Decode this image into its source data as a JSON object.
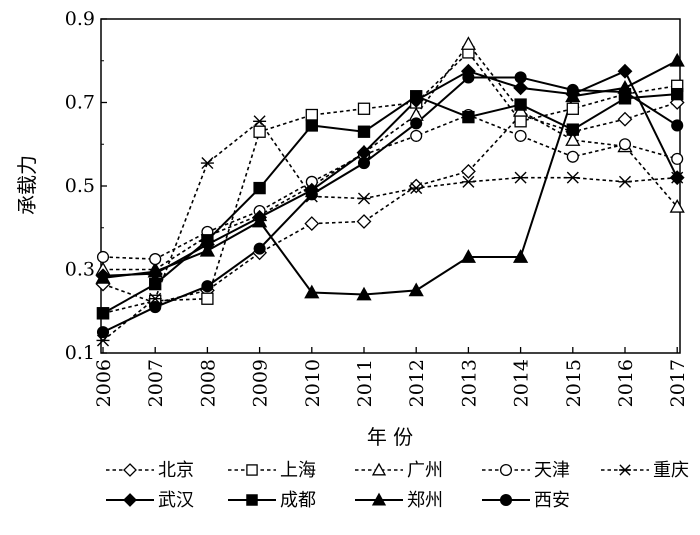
{
  "chart_data": {
    "type": "line",
    "title": "",
    "xlabel": "年 份",
    "ylabel": "承载力",
    "ylim": [
      0.1,
      0.9
    ],
    "yticks": [
      0.1,
      0.3,
      0.5,
      0.7,
      0.9
    ],
    "ytick_labels": [
      "0.1",
      "0.3",
      "0.5",
      "0.7",
      "0.9"
    ],
    "categories": [
      "2006",
      "2007",
      "2008",
      "2009",
      "2010",
      "2011",
      "2012",
      "2013",
      "2014",
      "2015",
      "2016",
      "2017"
    ],
    "grid": false,
    "legend_position": "bottom",
    "series": [
      {
        "name": "北京",
        "marker": "diamond-open",
        "dash": "dotted",
        "values": [
          0.265,
          0.22,
          0.25,
          0.34,
          0.41,
          0.415,
          0.5,
          0.535,
          0.67,
          0.63,
          0.66,
          0.7
        ]
      },
      {
        "name": "上海",
        "marker": "square-open",
        "dash": "dotted",
        "values": [
          0.195,
          0.225,
          0.23,
          0.63,
          0.67,
          0.685,
          0.7,
          0.82,
          0.655,
          0.685,
          0.72,
          0.74
        ]
      },
      {
        "name": "广州",
        "marker": "triangle-open",
        "dash": "dotted",
        "values": [
          0.3,
          0.3,
          0.38,
          0.43,
          0.5,
          0.58,
          0.67,
          0.84,
          0.68,
          0.61,
          0.595,
          0.45
        ]
      },
      {
        "name": "天津",
        "marker": "circle-open",
        "dash": "dotted",
        "values": [
          0.33,
          0.325,
          0.39,
          0.44,
          0.51,
          0.575,
          0.62,
          0.67,
          0.62,
          0.57,
          0.6,
          0.565
        ]
      },
      {
        "name": "重庆",
        "marker": "asterisk",
        "dash": "dotted",
        "values": [
          0.13,
          0.23,
          0.555,
          0.655,
          0.475,
          0.47,
          0.495,
          0.51,
          0.52,
          0.52,
          0.51,
          0.52
        ]
      },
      {
        "name": "武汉",
        "marker": "diamond-filled",
        "dash": "solid",
        "values": [
          0.285,
          0.29,
          0.36,
          0.425,
          0.49,
          0.58,
          0.705,
          0.775,
          0.735,
          0.72,
          0.775,
          0.52
        ]
      },
      {
        "name": "成都",
        "marker": "square-filled",
        "dash": "solid",
        "values": [
          0.195,
          0.265,
          0.37,
          0.495,
          0.645,
          0.63,
          0.715,
          0.665,
          0.695,
          0.635,
          0.71,
          0.72
        ]
      },
      {
        "name": "郑州",
        "marker": "triangle-filled",
        "dash": "solid",
        "values": [
          0.28,
          0.295,
          0.345,
          0.415,
          0.245,
          0.24,
          0.25,
          0.33,
          0.33,
          0.715,
          0.735,
          0.8
        ]
      },
      {
        "name": "西安",
        "marker": "circle-filled",
        "dash": "solid",
        "values": [
          0.15,
          0.21,
          0.26,
          0.35,
          0.48,
          0.555,
          0.65,
          0.76,
          0.76,
          0.73,
          0.725,
          0.645
        ]
      }
    ]
  }
}
